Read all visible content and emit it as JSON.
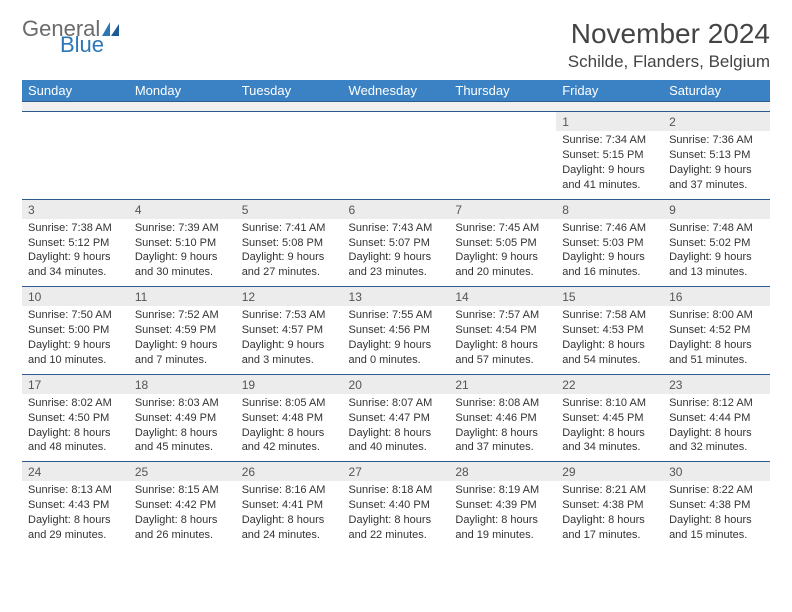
{
  "brand": {
    "first": "General",
    "second": "Blue",
    "color_gray": "#6b6b6b",
    "color_blue": "#2c77b8"
  },
  "header": {
    "title": "November 2024",
    "location": "Schilde, Flanders, Belgium"
  },
  "style": {
    "header_bg": "#3b82c4",
    "header_fg": "#ffffff",
    "daynum_bg": "#ececec",
    "border_color": "#2c5a8a",
    "body_font_size": 11
  },
  "weekdays": [
    "Sunday",
    "Monday",
    "Tuesday",
    "Wednesday",
    "Thursday",
    "Friday",
    "Saturday"
  ],
  "weeks": [
    [
      null,
      null,
      null,
      null,
      null,
      {
        "n": "1",
        "sr": "7:34 AM",
        "ss": "5:15 PM",
        "dl": "9 hours and 41 minutes."
      },
      {
        "n": "2",
        "sr": "7:36 AM",
        "ss": "5:13 PM",
        "dl": "9 hours and 37 minutes."
      }
    ],
    [
      {
        "n": "3",
        "sr": "7:38 AM",
        "ss": "5:12 PM",
        "dl": "9 hours and 34 minutes."
      },
      {
        "n": "4",
        "sr": "7:39 AM",
        "ss": "5:10 PM",
        "dl": "9 hours and 30 minutes."
      },
      {
        "n": "5",
        "sr": "7:41 AM",
        "ss": "5:08 PM",
        "dl": "9 hours and 27 minutes."
      },
      {
        "n": "6",
        "sr": "7:43 AM",
        "ss": "5:07 PM",
        "dl": "9 hours and 23 minutes."
      },
      {
        "n": "7",
        "sr": "7:45 AM",
        "ss": "5:05 PM",
        "dl": "9 hours and 20 minutes."
      },
      {
        "n": "8",
        "sr": "7:46 AM",
        "ss": "5:03 PM",
        "dl": "9 hours and 16 minutes."
      },
      {
        "n": "9",
        "sr": "7:48 AM",
        "ss": "5:02 PM",
        "dl": "9 hours and 13 minutes."
      }
    ],
    [
      {
        "n": "10",
        "sr": "7:50 AM",
        "ss": "5:00 PM",
        "dl": "9 hours and 10 minutes."
      },
      {
        "n": "11",
        "sr": "7:52 AM",
        "ss": "4:59 PM",
        "dl": "9 hours and 7 minutes."
      },
      {
        "n": "12",
        "sr": "7:53 AM",
        "ss": "4:57 PM",
        "dl": "9 hours and 3 minutes."
      },
      {
        "n": "13",
        "sr": "7:55 AM",
        "ss": "4:56 PM",
        "dl": "9 hours and 0 minutes."
      },
      {
        "n": "14",
        "sr": "7:57 AM",
        "ss": "4:54 PM",
        "dl": "8 hours and 57 minutes."
      },
      {
        "n": "15",
        "sr": "7:58 AM",
        "ss": "4:53 PM",
        "dl": "8 hours and 54 minutes."
      },
      {
        "n": "16",
        "sr": "8:00 AM",
        "ss": "4:52 PM",
        "dl": "8 hours and 51 minutes."
      }
    ],
    [
      {
        "n": "17",
        "sr": "8:02 AM",
        "ss": "4:50 PM",
        "dl": "8 hours and 48 minutes."
      },
      {
        "n": "18",
        "sr": "8:03 AM",
        "ss": "4:49 PM",
        "dl": "8 hours and 45 minutes."
      },
      {
        "n": "19",
        "sr": "8:05 AM",
        "ss": "4:48 PM",
        "dl": "8 hours and 42 minutes."
      },
      {
        "n": "20",
        "sr": "8:07 AM",
        "ss": "4:47 PM",
        "dl": "8 hours and 40 minutes."
      },
      {
        "n": "21",
        "sr": "8:08 AM",
        "ss": "4:46 PM",
        "dl": "8 hours and 37 minutes."
      },
      {
        "n": "22",
        "sr": "8:10 AM",
        "ss": "4:45 PM",
        "dl": "8 hours and 34 minutes."
      },
      {
        "n": "23",
        "sr": "8:12 AM",
        "ss": "4:44 PM",
        "dl": "8 hours and 32 minutes."
      }
    ],
    [
      {
        "n": "24",
        "sr": "8:13 AM",
        "ss": "4:43 PM",
        "dl": "8 hours and 29 minutes."
      },
      {
        "n": "25",
        "sr": "8:15 AM",
        "ss": "4:42 PM",
        "dl": "8 hours and 26 minutes."
      },
      {
        "n": "26",
        "sr": "8:16 AM",
        "ss": "4:41 PM",
        "dl": "8 hours and 24 minutes."
      },
      {
        "n": "27",
        "sr": "8:18 AM",
        "ss": "4:40 PM",
        "dl": "8 hours and 22 minutes."
      },
      {
        "n": "28",
        "sr": "8:19 AM",
        "ss": "4:39 PM",
        "dl": "8 hours and 19 minutes."
      },
      {
        "n": "29",
        "sr": "8:21 AM",
        "ss": "4:38 PM",
        "dl": "8 hours and 17 minutes."
      },
      {
        "n": "30",
        "sr": "8:22 AM",
        "ss": "4:38 PM",
        "dl": "8 hours and 15 minutes."
      }
    ]
  ],
  "labels": {
    "sunrise": "Sunrise:",
    "sunset": "Sunset:",
    "daylight": "Daylight:"
  }
}
